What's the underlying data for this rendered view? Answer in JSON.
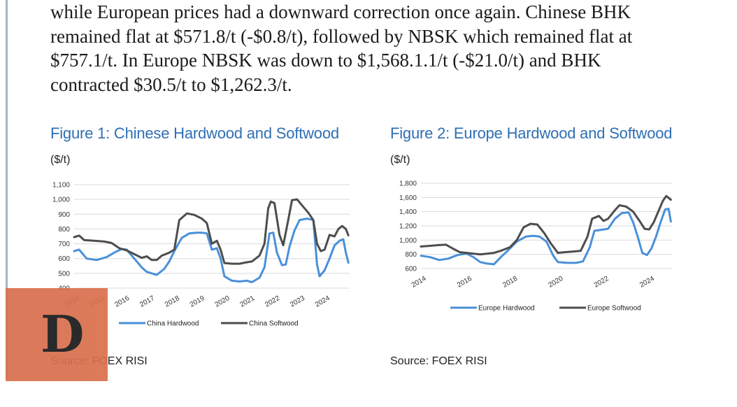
{
  "article": {
    "lines": [
      "while European prices had a downward correction once again. Chinese BHK",
      "remained flat at $571.8/t (-$0.8/t), followed by NBSK which remained flat at",
      "$757.1/t. In Europe NBSK was down to $1,568.1.1/t (-$21.0/t) and BHK",
      "contracted $30.5/t to $1,262.3/t."
    ]
  },
  "figures": [
    {
      "title": "Figure 1: Chinese Hardwood and Softwood",
      "unit": "($/t)",
      "source": "Source: FOEX RISI"
    },
    {
      "title": "Figure 2: Europe Hardwood and Softwood",
      "unit": "($/t)",
      "source": "Source: FOEX RISI"
    }
  ],
  "logo": {
    "letter": "D"
  },
  "chart_data": [
    {
      "type": "line",
      "ylim": [
        400,
        1100
      ],
      "yticks": [
        400,
        500,
        600,
        700,
        800,
        900,
        1000,
        1100
      ],
      "ytick_labels": [
        "400",
        "500",
        "600",
        "700",
        "800",
        "900",
        "1,000",
        "1,100"
      ],
      "xlim": [
        2014,
        2025
      ],
      "xticks": [
        2014,
        2015,
        2016,
        2017,
        2018,
        2019,
        2020,
        2021,
        2022,
        2023,
        2024
      ],
      "xtick_labels": [
        "2014",
        "2015",
        "2016",
        "2017",
        "2018",
        "2019",
        "2020",
        "2021",
        "2022",
        "2023",
        "2024"
      ],
      "grid": true,
      "legend": "bottom",
      "series": [
        {
          "name": "China Hardwood",
          "color": "#4a90d9",
          "points": [
            [
              2014.0,
              650
            ],
            [
              2014.2,
              660
            ],
            [
              2014.5,
              600
            ],
            [
              2014.9,
              590
            ],
            [
              2015.3,
              610
            ],
            [
              2015.6,
              640
            ],
            [
              2015.9,
              665
            ],
            [
              2016.1,
              660
            ],
            [
              2016.4,
              600
            ],
            [
              2016.7,
              540
            ],
            [
              2016.9,
              510
            ],
            [
              2017.1,
              500
            ],
            [
              2017.3,
              490
            ],
            [
              2017.6,
              530
            ],
            [
              2017.8,
              580
            ],
            [
              2018.0,
              650
            ],
            [
              2018.3,
              740
            ],
            [
              2018.6,
              770
            ],
            [
              2018.9,
              775
            ],
            [
              2019.1,
              775
            ],
            [
              2019.3,
              770
            ],
            [
              2019.5,
              660
            ],
            [
              2019.7,
              670
            ],
            [
              2019.85,
              600
            ],
            [
              2020.0,
              480
            ],
            [
              2020.3,
              450
            ],
            [
              2020.6,
              445
            ],
            [
              2020.9,
              450
            ],
            [
              2021.1,
              440
            ],
            [
              2021.4,
              470
            ],
            [
              2021.6,
              540
            ],
            [
              2021.8,
              770
            ],
            [
              2021.95,
              775
            ],
            [
              2022.1,
              640
            ],
            [
              2022.3,
              555
            ],
            [
              2022.45,
              560
            ],
            [
              2022.6,
              680
            ],
            [
              2022.8,
              790
            ],
            [
              2023.0,
              860
            ],
            [
              2023.3,
              870
            ],
            [
              2023.55,
              860
            ],
            [
              2023.7,
              560
            ],
            [
              2023.8,
              480
            ],
            [
              2024.0,
              520
            ],
            [
              2024.2,
              600
            ],
            [
              2024.4,
              690
            ],
            [
              2024.6,
              720
            ],
            [
              2024.75,
              730
            ],
            [
              2024.85,
              640
            ],
            [
              2024.95,
              572
            ]
          ]
        },
        {
          "name": "China Softwood",
          "color": "#4d4d4d",
          "points": [
            [
              2014.0,
              745
            ],
            [
              2014.2,
              755
            ],
            [
              2014.4,
              725
            ],
            [
              2014.8,
              720
            ],
            [
              2015.2,
              715
            ],
            [
              2015.5,
              705
            ],
            [
              2015.8,
              670
            ],
            [
              2016.1,
              655
            ],
            [
              2016.4,
              630
            ],
            [
              2016.7,
              605
            ],
            [
              2016.9,
              615
            ],
            [
              2017.1,
              590
            ],
            [
              2017.3,
              590
            ],
            [
              2017.5,
              620
            ],
            [
              2017.8,
              640
            ],
            [
              2018.0,
              660
            ],
            [
              2018.2,
              860
            ],
            [
              2018.5,
              905
            ],
            [
              2018.8,
              895
            ],
            [
              2019.1,
              870
            ],
            [
              2019.3,
              840
            ],
            [
              2019.5,
              700
            ],
            [
              2019.7,
              720
            ],
            [
              2019.85,
              660
            ],
            [
              2020.0,
              570
            ],
            [
              2020.3,
              565
            ],
            [
              2020.6,
              565
            ],
            [
              2020.9,
              575
            ],
            [
              2021.1,
              580
            ],
            [
              2021.4,
              620
            ],
            [
              2021.6,
              700
            ],
            [
              2021.75,
              940
            ],
            [
              2021.85,
              985
            ],
            [
              2022.0,
              975
            ],
            [
              2022.2,
              760
            ],
            [
              2022.35,
              690
            ],
            [
              2022.55,
              860
            ],
            [
              2022.7,
              995
            ],
            [
              2022.9,
              1000
            ],
            [
              2023.1,
              960
            ],
            [
              2023.35,
              910
            ],
            [
              2023.55,
              860
            ],
            [
              2023.7,
              700
            ],
            [
              2023.85,
              650
            ],
            [
              2024.0,
              660
            ],
            [
              2024.2,
              760
            ],
            [
              2024.4,
              750
            ],
            [
              2024.55,
              800
            ],
            [
              2024.7,
              820
            ],
            [
              2024.85,
              800
            ],
            [
              2024.95,
              757
            ]
          ]
        }
      ]
    },
    {
      "type": "line",
      "ylim": [
        600,
        1800
      ],
      "yticks": [
        600,
        800,
        1000,
        1200,
        1400,
        1600,
        1800
      ],
      "ytick_labels": [
        "600",
        "800",
        "1,000",
        "1,200",
        "1,400",
        "1,600",
        "1,800"
      ],
      "xlim": [
        2014,
        2025
      ],
      "xticks": [
        2014,
        2016,
        2018,
        2020,
        2022,
        2024
      ],
      "xtick_labels": [
        "2014",
        "2016",
        "2018",
        "2020",
        "2022",
        "2024"
      ],
      "grid": true,
      "legend": "bottom",
      "series": [
        {
          "name": "Europe Hardwood",
          "color": "#4a90d9",
          "points": [
            [
              2014.0,
              780
            ],
            [
              2014.4,
              760
            ],
            [
              2014.8,
              720
            ],
            [
              2015.2,
              740
            ],
            [
              2015.6,
              790
            ],
            [
              2016.0,
              810
            ],
            [
              2016.3,
              760
            ],
            [
              2016.6,
              690
            ],
            [
              2016.9,
              670
            ],
            [
              2017.2,
              660
            ],
            [
              2017.5,
              760
            ],
            [
              2017.8,
              850
            ],
            [
              2018.2,
              980
            ],
            [
              2018.6,
              1050
            ],
            [
              2018.9,
              1060
            ],
            [
              2019.2,
              1050
            ],
            [
              2019.5,
              980
            ],
            [
              2019.8,
              780
            ],
            [
              2020.0,
              690
            ],
            [
              2020.4,
              680
            ],
            [
              2020.8,
              680
            ],
            [
              2021.1,
              700
            ],
            [
              2021.4,
              900
            ],
            [
              2021.6,
              1130
            ],
            [
              2022.0,
              1150
            ],
            [
              2022.2,
              1160
            ],
            [
              2022.5,
              1300
            ],
            [
              2022.8,
              1380
            ],
            [
              2023.1,
              1390
            ],
            [
              2023.3,
              1250
            ],
            [
              2023.5,
              1050
            ],
            [
              2023.7,
              820
            ],
            [
              2023.9,
              790
            ],
            [
              2024.1,
              880
            ],
            [
              2024.3,
              1050
            ],
            [
              2024.5,
              1250
            ],
            [
              2024.7,
              1430
            ],
            [
              2024.85,
              1440
            ],
            [
              2024.95,
              1262
            ]
          ]
        },
        {
          "name": "Europe Softwood",
          "color": "#4d4d4d",
          "points": [
            [
              2014.0,
              910
            ],
            [
              2014.4,
              920
            ],
            [
              2014.8,
              930
            ],
            [
              2015.1,
              935
            ],
            [
              2015.4,
              880
            ],
            [
              2015.7,
              830
            ],
            [
              2016.0,
              820
            ],
            [
              2016.3,
              810
            ],
            [
              2016.6,
              800
            ],
            [
              2016.9,
              810
            ],
            [
              2017.2,
              820
            ],
            [
              2017.5,
              850
            ],
            [
              2017.9,
              900
            ],
            [
              2018.2,
              1000
            ],
            [
              2018.5,
              1180
            ],
            [
              2018.8,
              1230
            ],
            [
              2019.1,
              1220
            ],
            [
              2019.4,
              1100
            ],
            [
              2019.7,
              950
            ],
            [
              2020.0,
              820
            ],
            [
              2020.3,
              830
            ],
            [
              2020.7,
              840
            ],
            [
              2021.0,
              850
            ],
            [
              2021.3,
              1050
            ],
            [
              2021.5,
              1300
            ],
            [
              2021.8,
              1340
            ],
            [
              2022.0,
              1270
            ],
            [
              2022.2,
              1300
            ],
            [
              2022.5,
              1420
            ],
            [
              2022.7,
              1490
            ],
            [
              2023.0,
              1470
            ],
            [
              2023.3,
              1400
            ],
            [
              2023.6,
              1260
            ],
            [
              2023.8,
              1160
            ],
            [
              2024.0,
              1150
            ],
            [
              2024.2,
              1250
            ],
            [
              2024.4,
              1400
            ],
            [
              2024.6,
              1550
            ],
            [
              2024.75,
              1620
            ],
            [
              2024.95,
              1568
            ]
          ]
        }
      ]
    }
  ]
}
